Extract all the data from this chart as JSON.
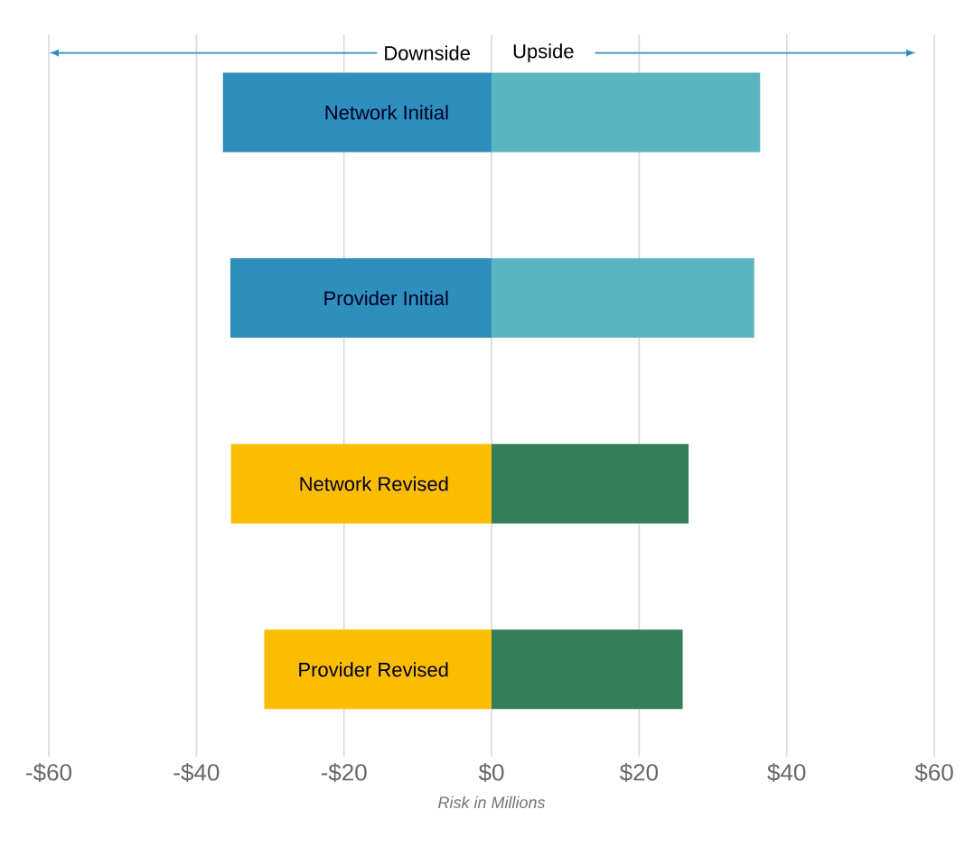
{
  "chart_data": {
    "type": "bar",
    "orientation": "horizontal",
    "stacked": true,
    "categories": [
      "Network  Initial",
      "Provider Initial",
      "Network Revised",
      "Provider Revised"
    ],
    "series": [
      {
        "colors": [
          "#2e8fbd",
          "#2e8fbd",
          "#fbbd00",
          "#fbbd00"
        ],
        "values": [
          -36.4,
          -35.4,
          -35.3,
          -30.8
        ]
      },
      {
        "colors": [
          "#5bb5c0",
          "#5bb5c0",
          "#367d5a",
          "#367d5a"
        ],
        "values": [
          36.4,
          35.6,
          26.7,
          25.9
        ]
      }
    ],
    "xlabel": "Risk in Millions",
    "xlim": [
      -60,
      60
    ],
    "xticks": [
      {
        "value": -60,
        "label": "-$60"
      },
      {
        "value": -40,
        "label": "-$40"
      },
      {
        "value": -20,
        "label": "-$20"
      },
      {
        "value": 0,
        "label": "$0"
      },
      {
        "value": 20,
        "label": "$20"
      },
      {
        "value": 40,
        "label": "$40"
      },
      {
        "value": 60,
        "label": "$60"
      }
    ],
    "grid": "x",
    "tick_labels": "x",
    "annotations": [
      "Downside",
      "Upside"
    ]
  }
}
